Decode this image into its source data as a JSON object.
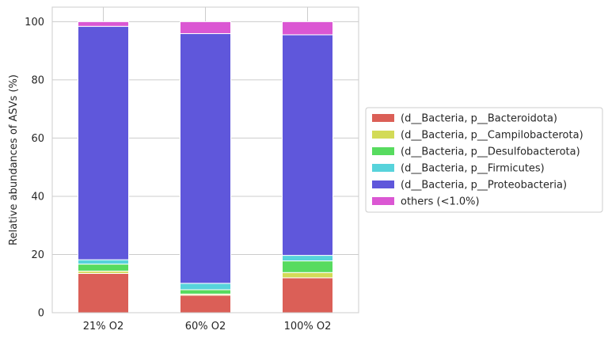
{
  "chart_data": {
    "type": "bar",
    "stacked": true,
    "categories": [
      "21% O2",
      "60% O2",
      "100% O2"
    ],
    "series": [
      {
        "name": "(d__Bacteria, p__Bacteroidota)",
        "color": "#db5f57",
        "values": [
          13.5,
          6.0,
          12.0
        ]
      },
      {
        "name": "(d__Bacteria, p__Campilobacterota)",
        "color": "#d3db57",
        "values": [
          0.8,
          0.4,
          1.8
        ]
      },
      {
        "name": "(d__Bacteria, p__Desulfobacterota)",
        "color": "#57db5f",
        "values": [
          2.4,
          1.5,
          4.0
        ]
      },
      {
        "name": "(d__Bacteria, p__Firmicutes)",
        "color": "#57d3db",
        "values": [
          1.5,
          2.2,
          1.9
        ]
      },
      {
        "name": "(d__Bacteria, p__Proteobacteria)",
        "color": "#5f57db",
        "values": [
          80.2,
          85.8,
          75.8
        ]
      },
      {
        "name": "others (<1.0%)",
        "color": "#db57d3",
        "values": [
          1.6,
          4.1,
          4.5
        ]
      }
    ],
    "xlabel": "",
    "ylabel": "Relative abundances of ASVs (%)",
    "ylim": [
      0,
      105
    ],
    "yticks": [
      0,
      20,
      40,
      60,
      80,
      100
    ],
    "grid": true,
    "legend_position": "right"
  }
}
